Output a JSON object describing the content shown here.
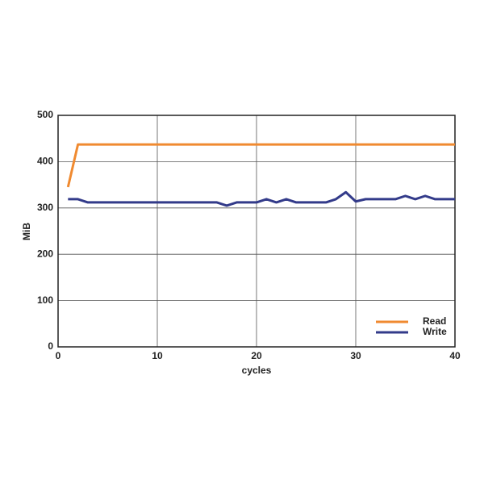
{
  "chart_data": {
    "type": "line",
    "x_label": "cycles",
    "y_label": "MiB",
    "x": [
      1,
      2,
      3,
      4,
      5,
      6,
      7,
      8,
      9,
      10,
      11,
      12,
      13,
      14,
      15,
      16,
      17,
      18,
      19,
      20,
      21,
      22,
      23,
      24,
      25,
      26,
      27,
      28,
      29,
      30,
      31,
      32,
      33,
      34,
      35,
      36,
      37,
      38,
      39,
      40
    ],
    "series": [
      {
        "name": "Read",
        "color": "#f08a30",
        "values": [
          345,
          437,
          437,
          437,
          437,
          437,
          437,
          437,
          437,
          437,
          437,
          437,
          437,
          437,
          437,
          437,
          437,
          437,
          437,
          437,
          437,
          437,
          437,
          437,
          437,
          437,
          437,
          437,
          437,
          437,
          437,
          437,
          437,
          437,
          437,
          437,
          437,
          437,
          437,
          437
        ]
      },
      {
        "name": "Write",
        "color": "#333b8a",
        "values": [
          319,
          319,
          312,
          312,
          312,
          312,
          312,
          312,
          312,
          312,
          312,
          312,
          312,
          312,
          312,
          312,
          305,
          312,
          312,
          312,
          319,
          312,
          319,
          312,
          312,
          312,
          312,
          319,
          334,
          314,
          319,
          319,
          319,
          319,
          326,
          319,
          326,
          319,
          319,
          319
        ]
      }
    ],
    "xlim": [
      0,
      40
    ],
    "xticks": [
      0,
      10,
      20,
      30,
      40
    ],
    "ylim": [
      0,
      500
    ],
    "yticks": [
      0,
      100,
      200,
      300,
      400,
      500
    ],
    "grid": true,
    "legend": "lower right"
  }
}
